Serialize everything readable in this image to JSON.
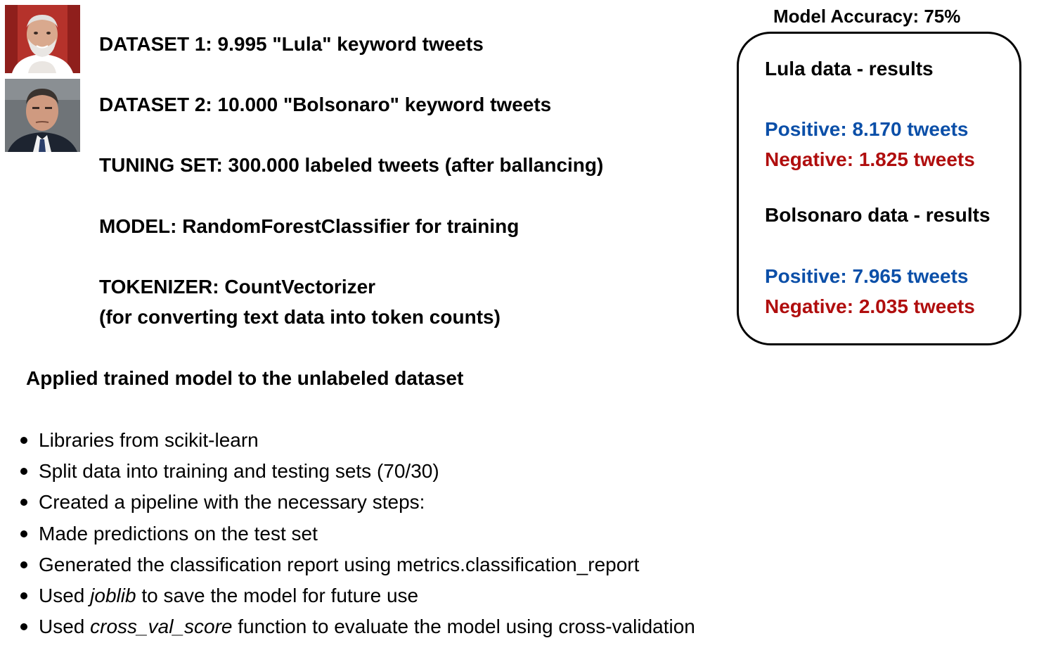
{
  "datasets": {
    "dataset1": "DATASET 1: 9.995 \"Lula\" keyword tweets",
    "dataset2": "DATASET 2: 10.000 \"Bolsonaro\" keyword tweets",
    "tuning_set": "TUNING SET: 300.000 labeled tweets (after ballancing)",
    "model": "MODEL: RandomForestClassifier for training",
    "tokenizer": "TOKENIZER: CountVectorizer",
    "tokenizer_note": "(for converting text data into token counts)"
  },
  "applied_heading": "Applied trained model to the unlabeled dataset",
  "bullets": [
    {
      "pre": "Libraries from scikit-learn",
      "em": "",
      "post": ""
    },
    {
      "pre": "Split data into training and testing sets (70/30)",
      "em": "",
      "post": ""
    },
    {
      "pre": "Created a pipeline with the necessary steps:",
      "em": "",
      "post": ""
    },
    {
      "pre": "Made predictions on the test set",
      "em": "",
      "post": ""
    },
    {
      "pre": "Generated the classification report using metrics.classification_report",
      "em": "",
      "post": ""
    },
    {
      "pre": "Used ",
      "em": "joblib",
      "post": " to save the model for future use"
    },
    {
      "pre": "Used ",
      "em": "cross_val_score",
      "post": " function to evaluate the model using cross-validation"
    }
  ],
  "results": {
    "accuracy_title": "Model Accuracy: 75%",
    "lula_heading": "Lula data - results",
    "lula_positive": "Positive: 8.170 tweets",
    "lula_negative": "Negative: 1.825 tweets",
    "bolsonaro_heading": "Bolsonaro data - results",
    "bolsonaro_positive": "Positive: 7.965 tweets",
    "bolsonaro_negative": "Negative: 2.035 tweets"
  },
  "colors": {
    "positive": "#0b4fa8",
    "negative": "#b00e0e"
  },
  "photos": {
    "lula": "portrait-photo",
    "bolsonaro": "portrait-photo"
  }
}
